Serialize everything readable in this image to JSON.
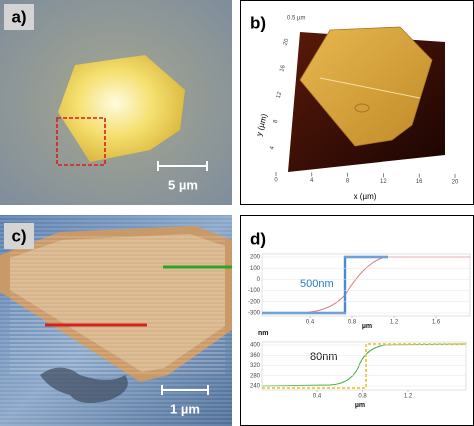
{
  "panels": [
    {
      "label": "a)",
      "scale_bar": "5 µm"
    },
    {
      "label": "b)",
      "z_scale": "0.5 µm",
      "y_axis_label": "y (µm)",
      "x_axis_label": "x (µm)",
      "xticks": [
        0,
        4,
        8,
        12,
        16,
        20
      ],
      "yticks": [
        4,
        8,
        12,
        16,
        20
      ]
    },
    {
      "label": "c)",
      "scale_bar": "1 µm"
    },
    {
      "label": "d)",
      "plots": [
        {
          "yticks": [
            200,
            100,
            0,
            -100,
            -200,
            -300
          ],
          "xticks": [
            0.4,
            0.8,
            1.2,
            1.6
          ],
          "x_axis_label": "µm",
          "annotation": "500nm"
        },
        {
          "y_axis_label": "nm",
          "yticks": [
            400,
            360,
            320,
            280,
            240
          ],
          "xticks": [
            0.4,
            0.8,
            1.2
          ],
          "x_axis_label": "µm",
          "annotation": "80nm"
        }
      ]
    }
  ]
}
